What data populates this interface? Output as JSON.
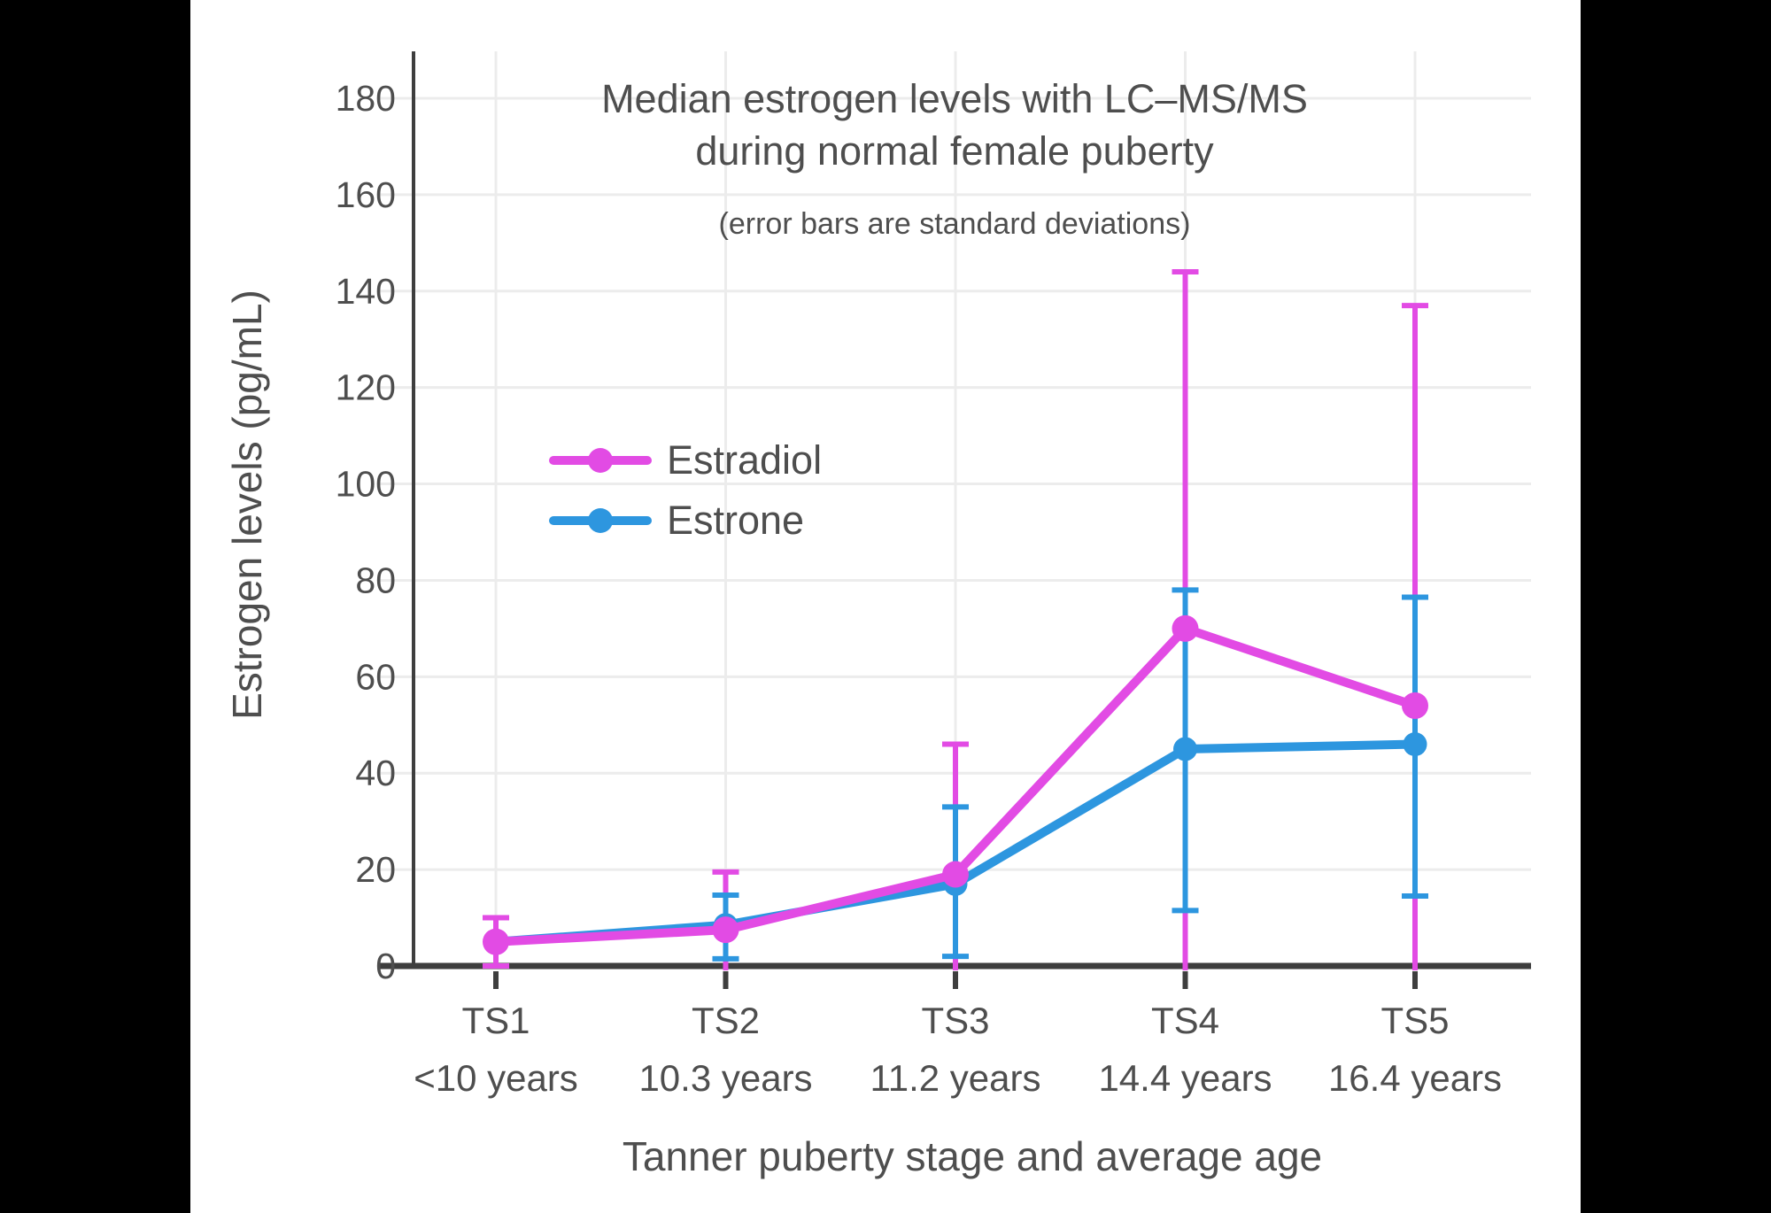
{
  "page": {
    "background_color": "#000000",
    "panel_color": "#ffffff",
    "text_color": "#4E4E4E",
    "axis_color": "#3E3E3E",
    "grid_color": "#ECECEC"
  },
  "chart_data": {
    "type": "line",
    "title_line1": "Median estrogen levels with LC–MS/MS",
    "title_line2": "during normal female puberty",
    "subtitle": "(error bars are standard deviations)",
    "xlabel": "Tanner puberty stage and average age",
    "ylabel": "Estrogen levels (pg/mL)",
    "ylim": [
      0,
      190
    ],
    "grid": true,
    "legend_position": "upper-left-inside",
    "yticks": [
      0,
      20,
      40,
      60,
      80,
      100,
      120,
      140,
      160,
      180
    ],
    "ytick_labels": [
      "0",
      "20",
      "40",
      "60",
      "80",
      "100",
      "120",
      "140",
      "160",
      "180"
    ],
    "categories": [
      "TS1",
      "TS2",
      "TS3",
      "TS4",
      "TS5"
    ],
    "category_ages": [
      "<10 years",
      "10.3 years",
      "11.2 years",
      "14.4 years",
      "16.4 years"
    ],
    "series": [
      {
        "name": "Estradiol",
        "color": "#E24BE4",
        "values": [
          5,
          7.5,
          19,
          70,
          54
        ],
        "err_top": [
          10,
          19.5,
          46,
          144,
          137
        ],
        "err_bottom": [
          0,
          null,
          null,
          null,
          null
        ]
      },
      {
        "name": "Estrone",
        "color": "#2D96DF",
        "values": [
          5,
          8.5,
          17,
          45,
          46
        ],
        "err_top": [
          null,
          14.7,
          33,
          78,
          76.5
        ],
        "err_bottom": [
          null,
          1.5,
          2,
          11.5,
          14.5
        ]
      }
    ]
  },
  "legend": {
    "items": [
      {
        "label": "Estradiol",
        "color": "#E24BE4"
      },
      {
        "label": "Estrone",
        "color": "#2D96DF"
      }
    ]
  }
}
